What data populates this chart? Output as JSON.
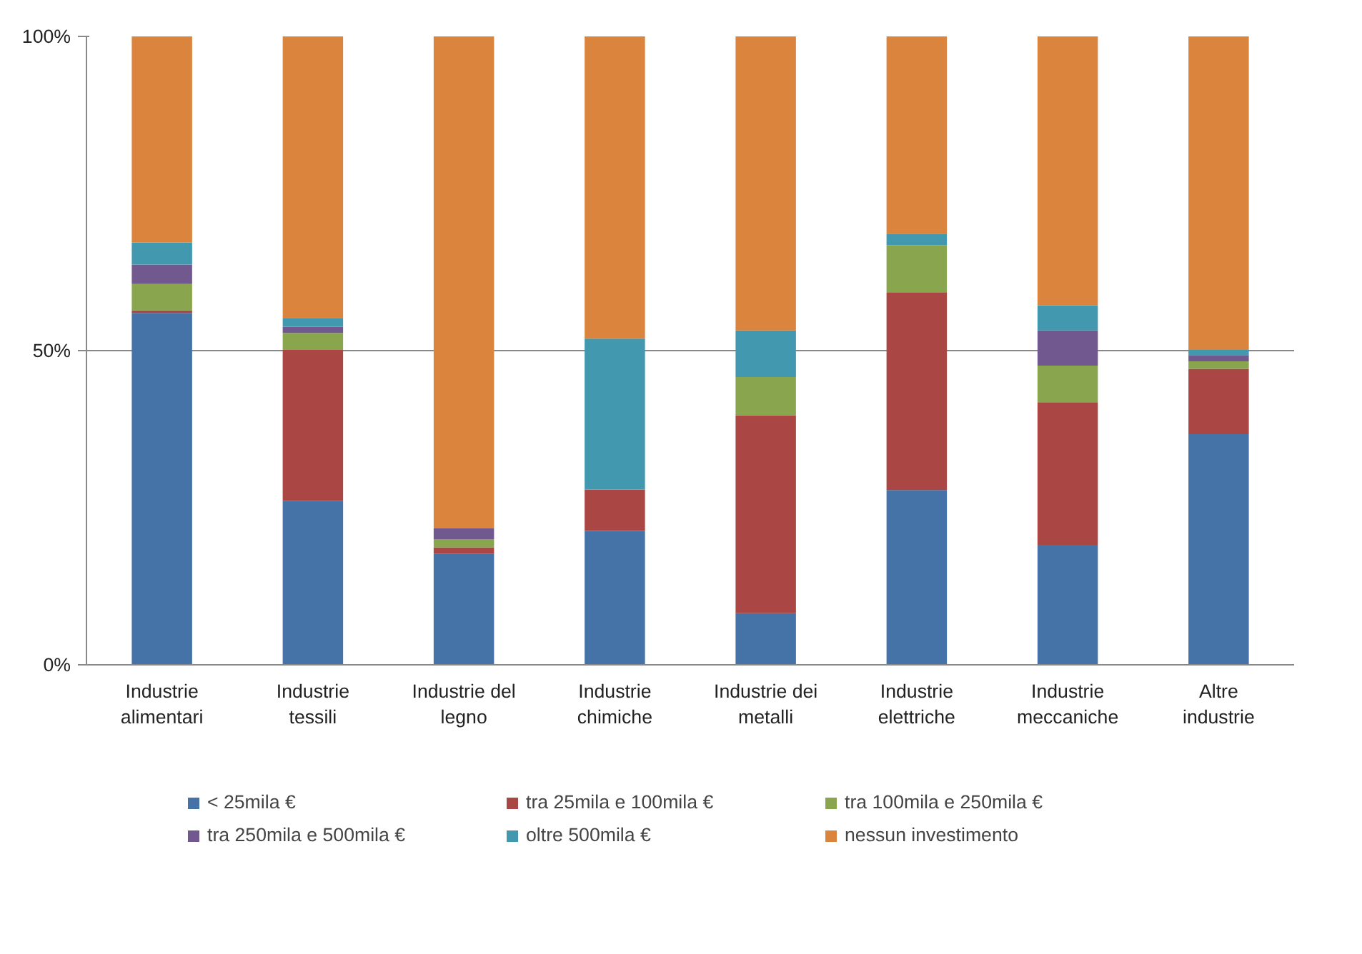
{
  "chart_data": {
    "type": "bar",
    "stacked": true,
    "categories": [
      "Industrie alimentari",
      "Industrie tessili",
      "Industrie del legno",
      "Industrie chimiche",
      "Industrie dei metalli",
      "Industrie elettriche",
      "Industrie meccaniche",
      "Altre industrie"
    ],
    "series": [
      {
        "name": "< 25mila €",
        "color": "#4572a7",
        "values": [
          56.0,
          26.1,
          17.7,
          21.3,
          8.2,
          27.8,
          19.1,
          36.7
        ]
      },
      {
        "name": "tra 25mila e 100mila €",
        "color": "#aa4643",
        "values": [
          0.4,
          24.0,
          1.0,
          6.6,
          31.5,
          31.5,
          22.7,
          10.4
        ]
      },
      {
        "name": "tra 100mila e 250mila €",
        "color": "#89a54e",
        "values": [
          4.2,
          2.7,
          1.3,
          0,
          6.1,
          7.5,
          5.8,
          1.2
        ]
      },
      {
        "name": "tra 250mila e 500mila €",
        "color": "#71588f",
        "values": [
          3.1,
          1.0,
          1.7,
          0,
          0,
          0,
          5.6,
          1.0
        ]
      },
      {
        "name": "oltre 500mila €",
        "color": "#4198af",
        "values": [
          3.5,
          1.3,
          0,
          24.0,
          7.4,
          1.8,
          4.0,
          0.8
        ]
      },
      {
        "name": "nessun investimento",
        "color": "#db843d",
        "values": [
          32.8,
          44.9,
          78.3,
          48.1,
          46.8,
          31.4,
          42.8,
          49.9
        ]
      }
    ],
    "ylim": [
      0,
      100
    ],
    "yticks": [
      {
        "value": 0,
        "label": "0%"
      },
      {
        "value": 50,
        "label": "50%"
      },
      {
        "value": 100,
        "label": "100%"
      }
    ],
    "grid": "y",
    "legend": "bottom"
  }
}
